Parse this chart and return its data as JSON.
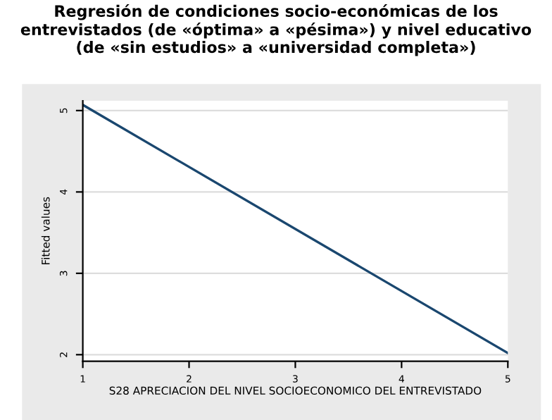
{
  "chart_data": {
    "type": "line",
    "title": "Regresión de condiciones socio-económicas de los\nentrevistados (de «óptima» a «pésima») y nivel educativo\n(de «sin estudios» a «universidad completa»)",
    "x": [
      1,
      5
    ],
    "values": [
      5.07,
      2.02
    ],
    "color": "#1a476f",
    "xlabel": "S28 APRECIACION DEL NIVEL SOCIOECONOMICO DEL ENTREVISTADO",
    "ylabel": "Fitted values",
    "xlim": [
      1,
      5
    ],
    "xticks": [
      1,
      2,
      3,
      4,
      5
    ],
    "ylim": [
      1.92,
      5.12
    ],
    "yticks": [
      2,
      3,
      4,
      5
    ],
    "grid": "y"
  }
}
